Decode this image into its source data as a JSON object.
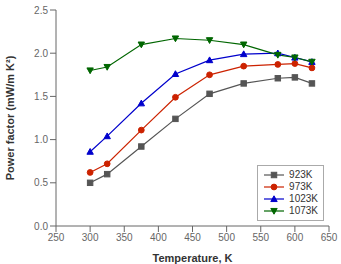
{
  "chart_data": {
    "type": "line",
    "xlabel": "Temperature, K",
    "ylabel": "Power factor (mW/m K²)",
    "x": [
      300,
      325,
      375,
      425,
      475,
      525,
      575,
      600,
      625
    ],
    "series": [
      {
        "name": "923K",
        "color": "#555555",
        "marker": "square",
        "values": [
          0.5,
          0.6,
          0.92,
          1.24,
          1.53,
          1.65,
          1.71,
          1.72,
          1.65
        ]
      },
      {
        "name": "973K",
        "color": "#cc2200",
        "marker": "circle",
        "values": [
          0.62,
          0.72,
          1.11,
          1.49,
          1.75,
          1.85,
          1.87,
          1.88,
          1.83
        ]
      },
      {
        "name": "1023K",
        "color": "#0000cc",
        "marker": "triangle-up",
        "values": [
          0.86,
          1.04,
          1.42,
          1.76,
          1.92,
          1.99,
          2.0,
          1.95,
          1.9
        ]
      },
      {
        "name": "1073K",
        "color": "#006600",
        "marker": "triangle-down",
        "values": [
          1.8,
          1.84,
          2.1,
          2.17,
          2.15,
          2.1,
          1.98,
          1.95,
          1.9
        ]
      }
    ],
    "xlim": [
      250,
      650
    ],
    "ylim": [
      0.0,
      2.5
    ],
    "xticks": [
      250,
      300,
      350,
      400,
      450,
      500,
      550,
      600,
      650
    ],
    "yticks": [
      {
        "value": 0,
        "label": "0.0"
      },
      0.5,
      {
        "value": 1,
        "label": "1.0"
      },
      1.5,
      {
        "value": 2,
        "label": "2.0"
      },
      2.5
    ],
    "grid": false,
    "legend": "lower right"
  }
}
